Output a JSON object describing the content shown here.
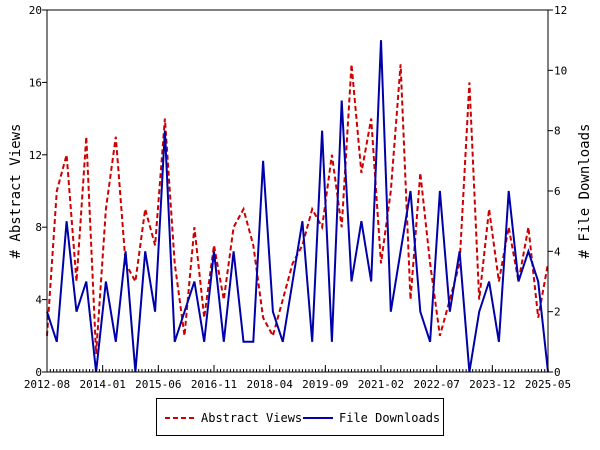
{
  "chart_data": {
    "type": "line",
    "title": "",
    "ylabel": "# Abstract Views",
    "y2label": "# File Downloads",
    "ylim": [
      0,
      20
    ],
    "y2lim": [
      0,
      12
    ],
    "x_range": [
      "2012-08",
      "2025-05"
    ],
    "x_tick_labels": [
      "2012-08",
      "2014-01",
      "2015-06",
      "2016-11",
      "2018-04",
      "2019-09",
      "2021-02",
      "2022-07",
      "2023-12",
      "2025-05"
    ],
    "y_ticks": [
      0,
      4,
      8,
      12,
      16,
      20
    ],
    "y2_ticks": [
      0,
      2,
      4,
      6,
      8,
      10,
      12
    ],
    "legend_position": "bottom",
    "grid": false,
    "x": [
      "2012-08",
      "2012-11",
      "2013-02",
      "2013-05",
      "2013-08",
      "2013-11",
      "2014-02",
      "2014-05",
      "2014-08",
      "2014-11",
      "2015-02",
      "2015-05",
      "2015-08",
      "2015-11",
      "2016-02",
      "2016-05",
      "2016-08",
      "2016-11",
      "2017-02",
      "2017-05",
      "2017-08",
      "2017-11",
      "2018-02",
      "2018-05",
      "2018-08",
      "2018-11",
      "2019-02",
      "2019-05",
      "2019-08",
      "2019-11",
      "2020-02",
      "2020-05",
      "2020-08",
      "2020-11",
      "2021-02",
      "2021-05",
      "2021-08",
      "2021-11",
      "2022-02",
      "2022-05",
      "2022-08",
      "2022-11",
      "2023-02",
      "2023-05",
      "2023-08",
      "2023-11",
      "2024-02",
      "2024-05",
      "2024-08",
      "2024-11",
      "2025-02",
      "2025-05"
    ],
    "series": [
      {
        "name": "Abstract Views",
        "axis": "left",
        "color": "#cc0000",
        "style": "dashed",
        "values": [
          2,
          10,
          12,
          5,
          13,
          1,
          9,
          13,
          6,
          5,
          9,
          7,
          14,
          6,
          2,
          8,
          3,
          7,
          4,
          8,
          9,
          7,
          3,
          2,
          4,
          6,
          7,
          9,
          8,
          12,
          8,
          17,
          11,
          14,
          6,
          10,
          17,
          4,
          11,
          6,
          2,
          4,
          6,
          16,
          4,
          9,
          5,
          8,
          5,
          8,
          3,
          6
        ]
      },
      {
        "name": "File Downloads",
        "axis": "right",
        "color": "#0000aa",
        "style": "solid",
        "values": [
          2,
          1,
          5,
          2,
          3,
          0,
          3,
          1,
          4,
          0,
          4,
          2,
          8,
          1,
          2,
          3,
          1,
          4,
          1,
          4,
          1,
          1,
          7,
          2,
          1,
          3,
          5,
          1,
          8,
          1,
          9,
          3,
          5,
          3,
          11,
          2,
          4,
          6,
          2,
          1,
          6,
          2,
          4,
          0,
          2,
          3,
          1,
          6,
          3,
          4,
          3,
          0
        ]
      }
    ]
  },
  "legend": {
    "items": [
      {
        "label": "Abstract Views",
        "color": "#cc0000",
        "style": "dashed"
      },
      {
        "label": "File Downloads",
        "color": "#0000aa",
        "style": "solid"
      }
    ]
  }
}
